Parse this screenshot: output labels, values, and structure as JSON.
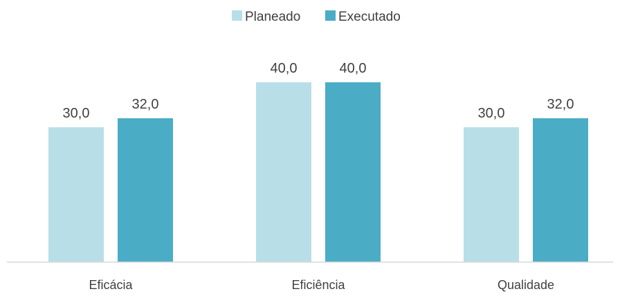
{
  "chart_data": {
    "type": "bar",
    "title": "",
    "xlabel": "",
    "ylabel": "",
    "categories": [
      "Eficácia",
      "Eficiência",
      "Qualidade"
    ],
    "series": [
      {
        "name": "Planeado",
        "values": [
          30.0,
          40.0,
          30.0
        ],
        "labels": [
          "30,0",
          "40,0",
          "30,0"
        ],
        "color": "#b8dfe8"
      },
      {
        "name": "Executado",
        "values": [
          32.0,
          40.0,
          32.0
        ],
        "labels": [
          "32,0",
          "40,0",
          "32,0"
        ],
        "color": "#4bacc6"
      }
    ],
    "ylim": [
      0,
      50
    ],
    "grid": false,
    "legend_position": "top-center",
    "axis_color": "#d9d9d9"
  }
}
